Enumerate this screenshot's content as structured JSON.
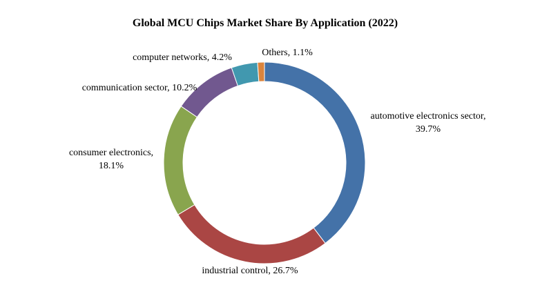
{
  "chart_data": {
    "type": "pie",
    "variant": "donut",
    "title": "Global MCU Chips Market Share By Application (2022)",
    "unit": "%",
    "slices": [
      {
        "name": "automotive electronics sector",
        "value": 39.7,
        "label_lines": [
          "automotive electronics sector,",
          "39.7%"
        ],
        "color": "#4472A8"
      },
      {
        "name": "industrial control",
        "value": 26.7,
        "label_lines": [
          "industrial control, 26.7%"
        ],
        "color": "#AA4644"
      },
      {
        "name": "consumer electronics",
        "value": 18.1,
        "label_lines": [
          "consumer electronics,",
          "18.1%"
        ],
        "color": "#89A54E"
      },
      {
        "name": "communication sector",
        "value": 10.2,
        "label_lines": [
          "communication sector, 10.2%"
        ],
        "color": "#71588F"
      },
      {
        "name": "computer networks",
        "value": 4.2,
        "label_lines": [
          "computer networks, 4.2%"
        ],
        "color": "#4198AF"
      },
      {
        "name": "Others",
        "value": 1.1,
        "label_lines": [
          "Others, 1.1%"
        ],
        "color": "#DB843D"
      }
    ],
    "legend": "none",
    "grid": false
  }
}
